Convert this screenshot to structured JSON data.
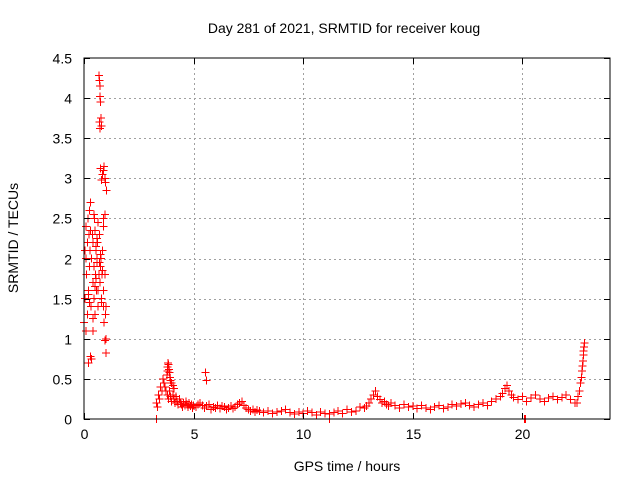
{
  "chart_data": {
    "type": "scatter",
    "title": "Day 281 of 2021, SRMTID for receiver koug",
    "xlabel": "GPS time / hours",
    "ylabel": "SRMTID / TECUs",
    "xlim": [
      0,
      24
    ],
    "ylim": [
      0,
      4.5
    ],
    "grid": true,
    "marker": "+",
    "x_ticks": [
      0,
      5,
      10,
      15,
      20
    ],
    "x_tick_labels": [
      "0",
      "5",
      "10",
      "15",
      "20"
    ],
    "y_ticks": [
      0,
      0.5,
      1,
      1.5,
      2,
      2.5,
      3,
      3.5,
      4,
      4.5
    ],
    "y_tick_labels": [
      "0",
      "0.5",
      "1",
      "1.5",
      "2",
      "2.5",
      "3",
      "3.5",
      "4",
      "4.5"
    ],
    "series": [
      {
        "name": "SRMTID",
        "color": "#ff0000",
        "x": [
          0.0,
          0.05,
          0.08,
          0.1,
          0.12,
          0.15,
          0.18,
          0.2,
          0.22,
          0.25,
          0.28,
          0.3,
          0.32,
          0.35,
          0.38,
          0.4,
          0.42,
          0.45,
          0.48,
          0.5,
          0.52,
          0.55,
          0.58,
          0.6,
          0.62,
          0.65,
          0.68,
          0.7,
          0.72,
          0.75,
          0.78,
          0.8,
          0.82,
          0.85,
          0.88,
          0.9,
          0.92,
          0.95,
          0.98,
          1.0,
          0.05,
          0.15,
          0.25,
          0.35,
          0.45,
          0.55,
          0.65,
          0.75,
          0.85,
          0.95,
          0.1,
          0.3,
          0.5,
          0.7,
          0.9,
          0.2,
          0.4,
          0.6,
          0.8,
          1.0,
          0.68,
          0.7,
          0.72,
          0.74,
          0.76,
          0.78,
          0.8,
          0.85,
          0.88,
          0.92,
          0.95,
          0.98,
          1.02,
          0.7,
          0.72,
          0.75,
          0.8,
          0.9,
          0.95,
          1.0,
          0.3,
          0.35,
          0.4,
          0.2,
          0.25,
          0.45,
          0.5,
          0.55,
          0.6,
          0.65,
          3.3,
          3.35,
          3.4,
          3.45,
          3.5,
          3.55,
          3.6,
          3.65,
          3.7,
          3.75,
          3.8,
          3.85,
          3.9,
          3.95,
          4.0,
          4.05,
          4.1,
          4.15,
          4.2,
          4.25,
          4.3,
          4.35,
          4.4,
          4.45,
          4.5,
          4.55,
          4.6,
          4.65,
          4.7,
          4.75,
          4.8,
          4.85,
          4.9,
          4.95,
          5.0,
          3.78,
          3.8,
          3.82,
          3.84,
          3.86,
          3.88,
          3.9,
          3.92,
          3.95,
          4.0,
          4.05,
          4.1,
          5.1,
          5.2,
          5.3,
          5.4,
          5.5,
          5.6,
          5.7,
          5.8,
          5.9,
          6.0,
          6.1,
          6.2,
          6.3,
          6.4,
          6.5,
          6.6,
          6.7,
          6.8,
          6.9,
          7.0,
          7.1,
          7.2,
          7.3,
          7.4,
          7.5,
          7.6,
          7.7,
          7.8,
          7.9,
          8.0,
          5.55,
          5.6,
          8.2,
          8.4,
          8.6,
          8.8,
          9.0,
          9.2,
          9.4,
          9.6,
          9.8,
          10.0,
          10.2,
          10.4,
          10.6,
          10.8,
          11.0,
          11.2,
          11.4,
          11.6,
          11.8,
          12.0,
          12.2,
          12.4,
          12.6,
          12.8,
          12.9,
          13.0,
          13.1,
          13.2,
          13.3,
          13.4,
          13.5,
          13.6,
          13.7,
          13.8,
          13.9,
          14.0,
          14.2,
          14.4,
          14.6,
          14.8,
          15.0,
          15.2,
          15.4,
          15.6,
          15.8,
          16.0,
          16.2,
          16.4,
          16.6,
          16.8,
          17.0,
          17.2,
          17.4,
          17.6,
          17.8,
          18.0,
          18.2,
          18.4,
          18.6,
          18.8,
          19.0,
          19.1,
          19.2,
          19.3,
          19.4,
          19.5,
          19.6,
          19.8,
          20.0,
          20.2,
          20.4,
          20.6,
          20.8,
          21.0,
          21.2,
          21.4,
          21.6,
          21.8,
          22.0,
          22.2,
          22.4,
          22.5,
          22.55,
          22.6,
          22.65,
          22.7,
          22.72,
          22.74,
          22.76,
          22.78,
          22.8,
          22.82,
          22.84,
          3.3,
          11.2,
          20.1,
          20.15
        ],
        "y": [
          1.2,
          1.5,
          2.0,
          2.4,
          1.8,
          2.2,
          2.5,
          1.6,
          2.3,
          1.9,
          2.1,
          2.7,
          1.4,
          2.0,
          2.3,
          1.7,
          2.2,
          1.9,
          2.5,
          1.3,
          1.8,
          2.1,
          1.6,
          2.0,
          2.2,
          1.4,
          1.8,
          2.3,
          1.7,
          1.9,
          2.0,
          1.5,
          1.8,
          2.1,
          1.4,
          1.6,
          1.2,
          1.8,
          1.3,
          1.4,
          2.1,
          1.3,
          2.6,
          2.0,
          1.5,
          1.75,
          2.45,
          2.05,
          1.85,
          2.55,
          1.1,
          2.35,
          1.65,
          1.95,
          2.4,
          1.55,
          1.25,
          2.25,
          1.45,
          1.0,
          4.28,
          4.22,
          4.15,
          4.02,
          3.95,
          3.75,
          3.65,
          3.05,
          3.1,
          3.15,
          3.0,
          2.95,
          2.85,
          3.7,
          3.62,
          3.12,
          2.98,
          2.5,
          0.98,
          0.82,
          0.78,
          0.75,
          1.1,
          0.7,
          1.45,
          2.55,
          2.35,
          2.15,
          1.95,
          1.6,
          0.2,
          0.15,
          0.3,
          0.25,
          0.4,
          0.35,
          0.5,
          0.45,
          0.4,
          0.35,
          0.3,
          0.25,
          0.35,
          0.28,
          0.22,
          0.3,
          0.25,
          0.2,
          0.28,
          0.22,
          0.18,
          0.25,
          0.2,
          0.18,
          0.15,
          0.2,
          0.17,
          0.22,
          0.18,
          0.15,
          0.2,
          0.16,
          0.18,
          0.14,
          0.17,
          0.55,
          0.6,
          0.65,
          0.7,
          0.68,
          0.62,
          0.58,
          0.52,
          0.48,
          0.45,
          0.42,
          0.38,
          0.15,
          0.18,
          0.2,
          0.17,
          0.14,
          0.16,
          0.18,
          0.12,
          0.15,
          0.14,
          0.17,
          0.13,
          0.16,
          0.15,
          0.12,
          0.14,
          0.16,
          0.13,
          0.15,
          0.18,
          0.2,
          0.22,
          0.17,
          0.14,
          0.12,
          0.1,
          0.12,
          0.09,
          0.11,
          0.1,
          0.58,
          0.48,
          0.08,
          0.1,
          0.07,
          0.09,
          0.1,
          0.12,
          0.08,
          0.06,
          0.09,
          0.07,
          0.1,
          0.08,
          0.05,
          0.09,
          0.07,
          0.06,
          0.08,
          0.1,
          0.07,
          0.12,
          0.09,
          0.1,
          0.15,
          0.14,
          0.16,
          0.2,
          0.25,
          0.3,
          0.35,
          0.28,
          0.24,
          0.2,
          0.22,
          0.18,
          0.16,
          0.2,
          0.17,
          0.14,
          0.18,
          0.15,
          0.16,
          0.13,
          0.17,
          0.14,
          0.12,
          0.15,
          0.17,
          0.13,
          0.15,
          0.18,
          0.16,
          0.19,
          0.2,
          0.17,
          0.15,
          0.18,
          0.2,
          0.17,
          0.22,
          0.25,
          0.28,
          0.32,
          0.38,
          0.42,
          0.35,
          0.3,
          0.27,
          0.24,
          0.28,
          0.22,
          0.26,
          0.3,
          0.25,
          0.22,
          0.26,
          0.28,
          0.24,
          0.27,
          0.3,
          0.24,
          0.2,
          0.2,
          0.28,
          0.35,
          0.45,
          0.52,
          0.6,
          0.66,
          0.72,
          0.8,
          0.85,
          0.9,
          0.95,
          0.0,
          0.0,
          0.0,
          0.0
        ]
      }
    ]
  }
}
